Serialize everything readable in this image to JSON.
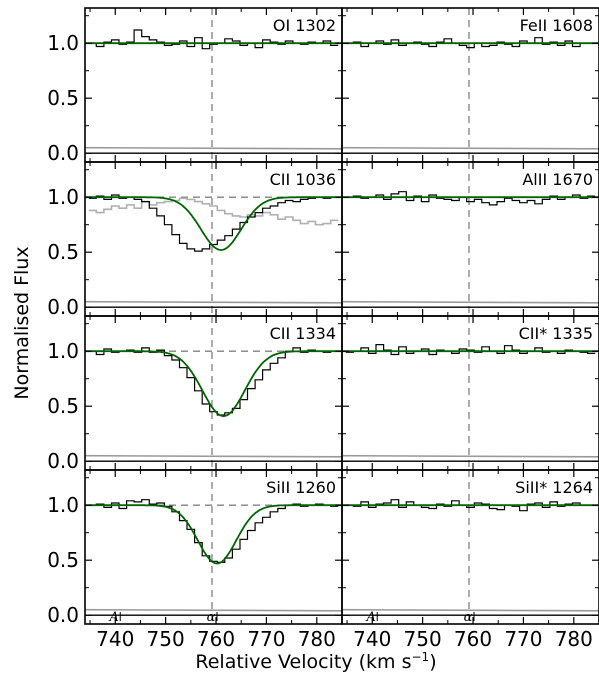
{
  "chart_data": {
    "type": "line",
    "ylabel": "Normalised Flux",
    "xlabel": "Relative Velocity (km s",
    "xlabel_sup": "−1",
    "xlabel_close": ")",
    "xlim": [
      734,
      785
    ],
    "ylim": [
      -0.08,
      1.32
    ],
    "x_ticks": [
      740,
      750,
      760,
      770,
      780
    ],
    "y_ticks": [
      0.0,
      0.5,
      1.0
    ],
    "reference_velocity": 759.2,
    "component_labels": [
      {
        "text": "A",
        "x": 739.8
      },
      {
        "text": "α",
        "x": 759.0
      }
    ],
    "colors": {
      "data": "#000000",
      "fit": "#006400",
      "blend": "#b0b0b0",
      "error": "#999999",
      "marker": "#808080"
    },
    "grid": false,
    "panels": [
      {
        "label": "OI 1302",
        "row": 0,
        "col": 0,
        "continuum_dashed": false,
        "show_components": false,
        "fit": {
          "depth": 0.0,
          "center": 761,
          "sigma": 5
        },
        "flux": [
          1.0,
          0.97,
          1.01,
          1.03,
          0.99,
          1.01,
          1.12,
          1.06,
          1.03,
          1.01,
          0.98,
          0.99,
          1.02,
          0.97,
          1.05,
          0.95,
          0.99,
          1.0,
          1.04,
          1.02,
          0.98,
          1.0,
          0.96,
          1.03,
          1.01,
          0.99,
          1.02,
          1.0,
          0.99,
          1.01,
          1.0,
          1.02,
          0.98
        ]
      },
      {
        "label": "FeII 1608",
        "row": 0,
        "col": 1,
        "continuum_dashed": false,
        "show_components": false,
        "fit": {
          "depth": 0.0,
          "center": 761,
          "sigma": 5
        },
        "flux": [
          1.0,
          1.01,
          0.97,
          1.0,
          1.02,
          0.99,
          1.03,
          0.98,
          1.0,
          1.01,
          0.99,
          0.97,
          1.01,
          1.04,
          1.0,
          0.98,
          0.96,
          1.0,
          0.97,
          0.98,
          1.01,
          0.99,
          0.97,
          1.02,
          1.0,
          1.05,
          0.99,
          1.01,
          0.98,
          1.02,
          0.97,
          1.0,
          1.0
        ]
      },
      {
        "label": "CII 1036",
        "row": 1,
        "col": 0,
        "continuum_dashed": true,
        "show_components": false,
        "fit": {
          "depth": 0.48,
          "center": 761.0,
          "sigma": 4.0
        },
        "flux": [
          0.99,
          1.01,
          0.98,
          1.02,
          0.99,
          1.0,
          0.98,
          0.96,
          0.9,
          0.83,
          0.75,
          0.66,
          0.58,
          0.53,
          0.51,
          0.53,
          0.57,
          0.61,
          0.65,
          0.71,
          0.77,
          0.82,
          0.86,
          0.9,
          0.92,
          0.95,
          0.97,
          0.96,
          0.98,
          0.99,
          1.0,
          0.99,
          1.0
        ],
        "blend": [
          0.88,
          0.86,
          0.89,
          0.92,
          0.9,
          0.93,
          0.9,
          0.96,
          0.93,
          0.95,
          0.96,
          0.97,
          0.99,
          0.98,
          0.96,
          0.94,
          0.92,
          0.88,
          0.85,
          0.83,
          0.82,
          0.84,
          0.83,
          0.86,
          0.84,
          0.8,
          0.82,
          0.79,
          0.76,
          0.78,
          0.75,
          0.76,
          0.79
        ]
      },
      {
        "label": "AlII 1670",
        "row": 1,
        "col": 1,
        "continuum_dashed": false,
        "show_components": false,
        "fit": {
          "depth": 0.0,
          "center": 761,
          "sigma": 5
        },
        "flux": [
          1.0,
          1.01,
          0.99,
          1.0,
          1.02,
          0.98,
          1.03,
          1.05,
          0.97,
          1.01,
          0.96,
          1.02,
          0.99,
          0.98,
          0.97,
          1.0,
          0.96,
          0.98,
          0.95,
          0.93,
          0.96,
          0.99,
          0.97,
          0.95,
          0.97,
          0.94,
          0.98,
          1.01,
          0.98,
          1.0,
          1.02,
          0.99,
          1.01
        ]
      },
      {
        "label": "CII 1334",
        "row": 2,
        "col": 0,
        "continuum_dashed": true,
        "show_components": false,
        "fit": {
          "depth": 0.59,
          "center": 761.5,
          "sigma": 4.2
        },
        "flux": [
          1.0,
          0.97,
          1.02,
          0.99,
          1.0,
          1.01,
          0.99,
          1.03,
          0.99,
          1.01,
          0.96,
          0.92,
          0.85,
          0.76,
          0.64,
          0.52,
          0.45,
          0.42,
          0.44,
          0.48,
          0.56,
          0.66,
          0.74,
          0.83,
          0.89,
          0.94,
          1.0,
          1.03,
          0.99,
          1.01,
          1.0,
          0.99,
          1.0
        ]
      },
      {
        "label": "CII* 1335",
        "row": 2,
        "col": 1,
        "continuum_dashed": false,
        "show_components": false,
        "fit": {
          "depth": 0.0,
          "center": 761,
          "sigma": 5
        },
        "flux": [
          0.99,
          1.0,
          1.03,
          0.98,
          1.06,
          1.01,
          0.97,
          1.04,
          0.98,
          1.0,
          1.02,
          0.97,
          1.01,
          1.0,
          0.98,
          1.02,
          1.01,
          0.99,
          1.04,
          1.0,
          0.98,
          1.05,
          1.01,
          0.98,
          1.0,
          1.03,
          0.99,
          1.0,
          0.98,
          1.01,
          1.0,
          0.99,
          0.98
        ]
      },
      {
        "label": "SiII 1260",
        "row": 3,
        "col": 0,
        "continuum_dashed": true,
        "show_components": true,
        "fit": {
          "depth": 0.53,
          "center": 760.2,
          "sigma": 3.8
        },
        "flux": [
          1.0,
          1.01,
          0.98,
          1.02,
          0.97,
          1.04,
          1.03,
          1.05,
          1.01,
          1.02,
          0.99,
          0.94,
          0.86,
          0.78,
          0.66,
          0.54,
          0.49,
          0.48,
          0.52,
          0.6,
          0.69,
          0.77,
          0.84,
          0.89,
          0.94,
          0.97,
          1.0,
          1.01,
          0.99,
          1.0,
          1.01,
          1.0,
          0.99
        ]
      },
      {
        "label": "SiII* 1264",
        "row": 3,
        "col": 1,
        "continuum_dashed": false,
        "show_components": true,
        "fit": {
          "depth": 0.0,
          "center": 761,
          "sigma": 5
        },
        "flux": [
          1.0,
          0.99,
          1.03,
          0.98,
          1.01,
          1.02,
          1.05,
          0.98,
          1.03,
          1.0,
          0.98,
          0.97,
          1.01,
          0.99,
          1.04,
          1.0,
          0.98,
          1.02,
          1.01,
          0.97,
          0.96,
          1.0,
          0.99,
          0.95,
          1.01,
          1.02,
          0.98,
          1.03,
          0.99,
          1.01,
          1.02,
          1.0,
          1.0
        ]
      }
    ]
  }
}
